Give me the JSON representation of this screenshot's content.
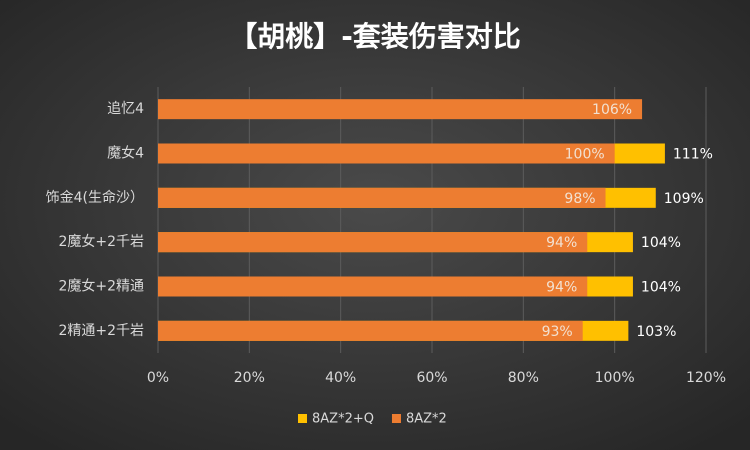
{
  "chart_data": {
    "type": "bar",
    "orientation": "horizontal",
    "overlap": true,
    "title": "【胡桃】-套装伤害对比",
    "categories": [
      "追忆4",
      "魔女4",
      "饰金4(生命沙）",
      "2魔女+2千岩",
      "2魔女+2精通",
      "2精通+2千岩"
    ],
    "series": [
      {
        "name": "8AZ*2+Q",
        "color": "#ffc000",
        "values": [
          null,
          111,
          109,
          104,
          104,
          103
        ],
        "value_labels": [
          null,
          "111%",
          "109%",
          "104%",
          "104%",
          "103%"
        ]
      },
      {
        "name": "8AZ*2",
        "color": "#ed7d31",
        "values": [
          106,
          100,
          98,
          94,
          94,
          93
        ],
        "value_labels": [
          "106%",
          "100%",
          "98%",
          "94%",
          "94%",
          "93%"
        ]
      }
    ],
    "xlim": [
      0,
      120
    ],
    "xticks": [
      {
        "value": 0,
        "label": "0%"
      },
      {
        "value": 20,
        "label": "20%"
      },
      {
        "value": 40,
        "label": "40%"
      },
      {
        "value": 60,
        "label": "60%"
      },
      {
        "value": 80,
        "label": "80%"
      },
      {
        "value": 100,
        "label": "100%"
      },
      {
        "value": 120,
        "label": "120%"
      }
    ],
    "grid": true,
    "legend": "bottom"
  }
}
